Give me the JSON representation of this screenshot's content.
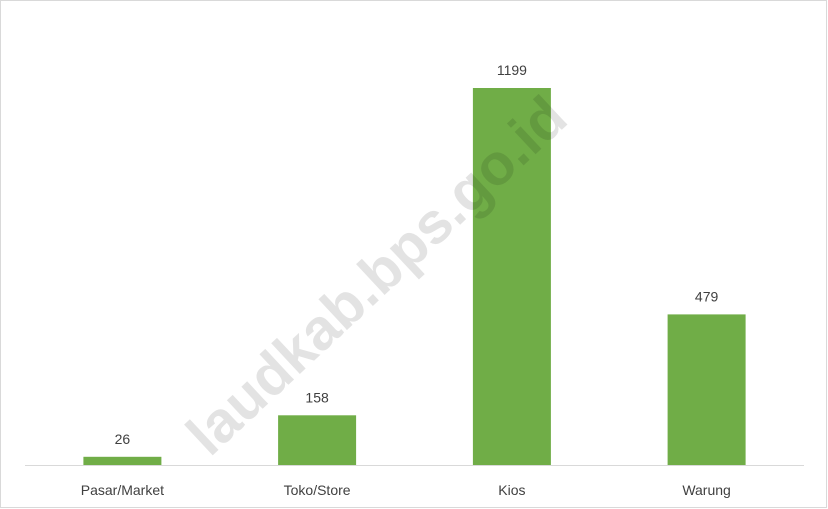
{
  "chart_data": {
    "type": "bar",
    "categories": [
      "Pasar/Market",
      "Toko/Store",
      "Kios",
      "Warung"
    ],
    "values": [
      26,
      158,
      1199,
      479
    ],
    "title": "",
    "xlabel": "",
    "ylabel": "",
    "ylim": [
      0,
      1300
    ],
    "grid": false,
    "legend": "none",
    "bar_color": "#70ad47",
    "axis_color": "#d9d9d9",
    "label_color": "#404040"
  },
  "watermark": {
    "text": "laudkab.bps.go.id"
  }
}
